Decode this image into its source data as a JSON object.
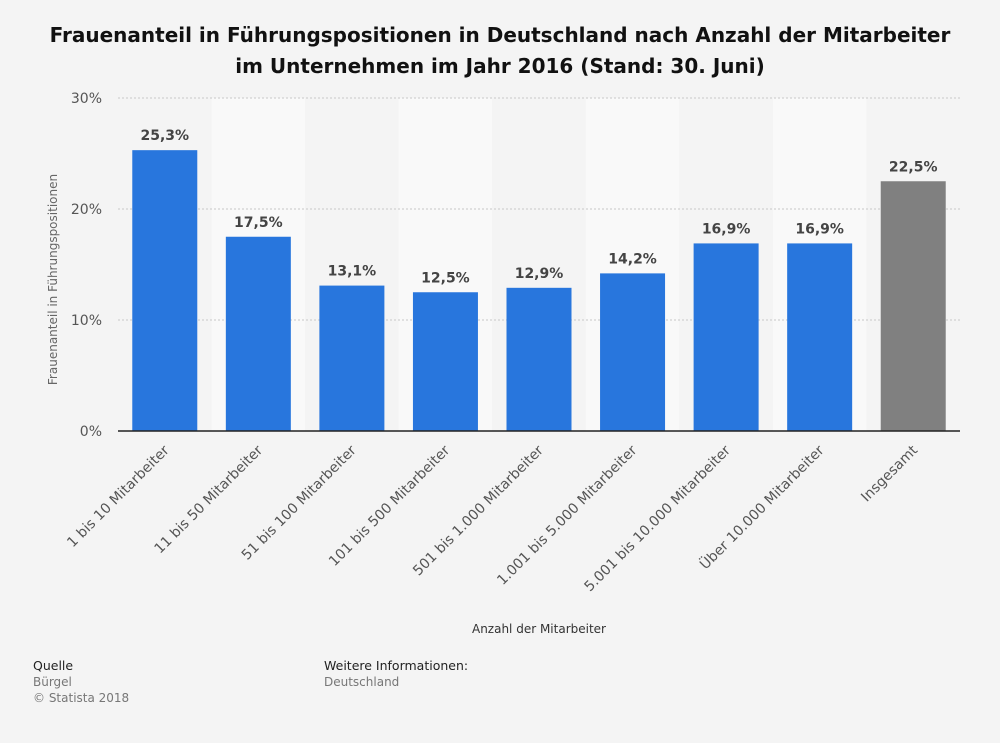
{
  "chart_data": {
    "type": "bar",
    "title": "Frauenanteil in Führungspositionen in Deutschland nach Anzahl der Mitarbeiter im Unternehmen im Jahr 2016 (Stand: 30. Juni)",
    "xlabel": "Anzahl der Mitarbeiter",
    "ylabel": "Frauenanteil in Führungspositionen",
    "ylim": [
      0,
      30
    ],
    "yticks": [
      "0%",
      "10%",
      "20%",
      "30%"
    ],
    "grid": true,
    "categories": [
      "1 bis 10 Mitarbeiter",
      "11 bis 50 Mitarbeiter",
      "51 bis 100 Mitarbeiter",
      "101 bis 500 Mitarbeiter",
      "501 bis 1.000 Mitarbeiter",
      "1.001 bis 5.000 Mitarbeiter",
      "5.001 bis 10.000 Mitarbeiter",
      "Über 10.000 Mitarbeiter",
      "Insgesamt"
    ],
    "values": [
      25.3,
      17.5,
      13.1,
      12.5,
      12.9,
      14.2,
      16.9,
      16.9,
      22.5
    ],
    "value_labels": [
      "25,3%",
      "17,5%",
      "13,1%",
      "12,5%",
      "12,9%",
      "14,2%",
      "16,9%",
      "16,9%",
      "22,5%"
    ],
    "colors": [
      "#2876dd",
      "#2876dd",
      "#2876dd",
      "#2876dd",
      "#2876dd",
      "#2876dd",
      "#2876dd",
      "#2876dd",
      "#808080"
    ]
  },
  "footer": {
    "source_heading": "Quelle",
    "source": "Bürgel",
    "copyright": "© Statista 2018",
    "info_heading": "Weitere Informationen:",
    "info": "Deutschland"
  }
}
